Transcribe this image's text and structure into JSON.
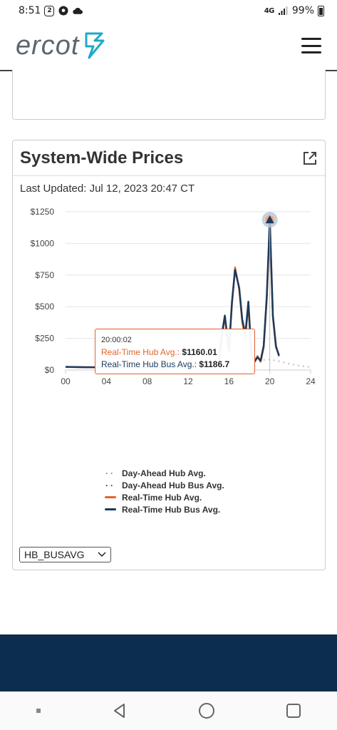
{
  "status_bar": {
    "time": "8:51",
    "badge_number": "2",
    "network": "4G",
    "battery": "99%"
  },
  "header": {
    "logo_text": "ercot",
    "menu_icon": "hamburger-menu-icon"
  },
  "card": {
    "title": "System-Wide Prices",
    "external_link_icon": "external-link-icon",
    "last_updated": "Last Updated: Jul 12, 2023 20:47 CT"
  },
  "tooltip": {
    "time": "20:00:02",
    "rows": [
      {
        "label": "Real-Time Hub Avg.:",
        "value": "$1160.01",
        "color": "#e0662a"
      },
      {
        "label": "Real-Time Hub Bus Avg.:",
        "value": "$1186.7",
        "color": "#1b3a5c"
      }
    ]
  },
  "legend": [
    {
      "label": "Day-Ahead Hub Avg.",
      "style": "dotted",
      "color": "#e0662a"
    },
    {
      "label": "Day-Ahead Hub Bus Avg.",
      "style": "dotted",
      "color": "#1b3a5c"
    },
    {
      "label": "Real-Time Hub Avg.",
      "style": "solid",
      "color": "#e0662a"
    },
    {
      "label": "Real-Time Hub Bus Avg.",
      "style": "solid",
      "color": "#1b3a5c"
    }
  ],
  "select": {
    "value": "HB_BUSAVG"
  },
  "colors": {
    "orange": "#e0662a",
    "navy": "#1b3a5c",
    "footer": "#0c2d4d"
  },
  "chart_data": {
    "type": "line",
    "title": "",
    "xlabel": "",
    "ylabel": "",
    "xlim": [
      0,
      24
    ],
    "ylim": [
      0,
      1250
    ],
    "x_ticks": [
      "00",
      "04",
      "08",
      "12",
      "16",
      "20",
      "24"
    ],
    "y_ticks": [
      "$0",
      "$250",
      "$500",
      "$750",
      "$1000",
      "$1250"
    ],
    "grid": true,
    "series": [
      {
        "name": "Real-Time Hub Avg.",
        "style": "solid",
        "color": "#e0662a",
        "x": [
          0,
          2,
          4,
          6,
          8,
          9,
          10,
          10.5,
          11,
          12,
          13,
          13.5,
          14,
          14.5,
          15,
          15.3,
          15.6,
          16,
          16.3,
          16.6,
          17,
          17.3,
          17.6,
          17.9,
          18.2,
          18.5,
          18.8,
          19.1,
          19.4,
          19.7,
          20,
          20.3,
          20.6,
          20.9
        ],
        "y": [
          25,
          22,
          20,
          22,
          22,
          15,
          18,
          20,
          25,
          28,
          45,
          50,
          30,
          60,
          55,
          250,
          420,
          160,
          520,
          810,
          640,
          380,
          250,
          520,
          120,
          70,
          110,
          65,
          180,
          560,
          1160,
          420,
          180,
          120
        ]
      },
      {
        "name": "Real-Time Hub Bus Avg.",
        "style": "solid",
        "color": "#1b3a5c",
        "x": [
          0,
          2,
          4,
          6,
          8,
          9,
          10,
          10.5,
          11,
          12,
          13,
          13.5,
          14,
          14.5,
          15,
          15.3,
          15.6,
          16,
          16.3,
          16.6,
          17,
          17.3,
          17.6,
          17.9,
          18.2,
          18.5,
          18.8,
          19.1,
          19.4,
          19.7,
          20,
          20.3,
          20.6,
          20.9
        ],
        "y": [
          25,
          22,
          20,
          22,
          22,
          15,
          18,
          22,
          25,
          28,
          45,
          55,
          30,
          65,
          55,
          280,
          430,
          150,
          540,
          790,
          650,
          400,
          280,
          540,
          110,
          65,
          100,
          75,
          190,
          580,
          1187,
          430,
          190,
          110
        ]
      },
      {
        "name": "Day-Ahead Hub Avg.",
        "style": "dotted",
        "color": "#e0662a",
        "x": [
          15,
          16,
          17,
          18,
          19,
          20,
          21,
          22,
          23,
          24
        ],
        "y": [
          55,
          65,
          70,
          75,
          80,
          85,
          70,
          50,
          35,
          25
        ]
      },
      {
        "name": "Day-Ahead Hub Bus Avg.",
        "style": "dotted",
        "color": "#1b3a5c",
        "x": [
          15,
          16,
          17,
          18,
          19,
          20,
          21,
          22,
          23,
          24
        ],
        "y": [
          50,
          60,
          65,
          70,
          75,
          80,
          65,
          45,
          30,
          20
        ]
      }
    ],
    "highlight": {
      "x": 20,
      "y": 1187
    }
  }
}
